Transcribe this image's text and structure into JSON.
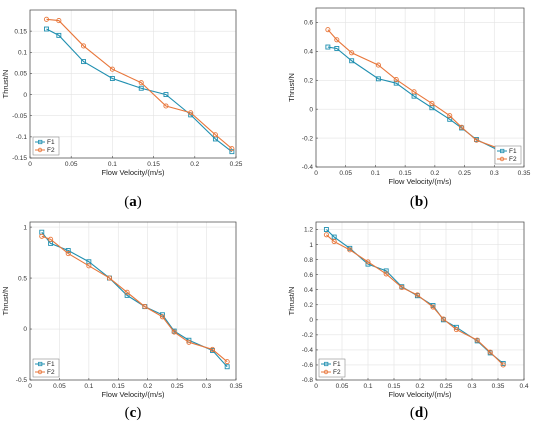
{
  "colors": {
    "F1": "#1f8fb0",
    "F2": "#e8763a",
    "grid": "#e3e3e3",
    "axis": "#444444"
  },
  "chart_data": [
    {
      "type": "line",
      "panel_label": "a",
      "xlabel": "Flow Velocity/(m/s)",
      "ylabel": "Thrust/N",
      "xlim": [
        0,
        0.25
      ],
      "ylim": [
        -0.15,
        0.2
      ],
      "xticks": [
        "0",
        "0.05",
        "0.1",
        "0.15",
        "0.2",
        "0.25"
      ],
      "yticks": [
        "-0.15",
        "-0.1",
        "-0.05",
        "0",
        "0.05",
        "0.1",
        "0.15"
      ],
      "grid": true,
      "legend_position": "bottom-left",
      "series": [
        {
          "name": "F1",
          "x": [
            0.02,
            0.035,
            0.065,
            0.1,
            0.135,
            0.165,
            0.195,
            0.225,
            0.245
          ],
          "y": [
            0.155,
            0.14,
            0.078,
            0.038,
            0.015,
            0.0,
            -0.048,
            -0.105,
            -0.135
          ]
        },
        {
          "name": "F2",
          "x": [
            0.02,
            0.035,
            0.065,
            0.1,
            0.135,
            0.165,
            0.195,
            0.225,
            0.245
          ],
          "y": [
            0.178,
            0.175,
            0.115,
            0.06,
            0.028,
            -0.027,
            -0.043,
            -0.095,
            -0.128
          ]
        }
      ]
    },
    {
      "type": "line",
      "panel_label": "b",
      "xlabel": "Flow Velocity/(m/s)",
      "ylabel": "Thrust/N",
      "xlim": [
        0,
        0.35
      ],
      "ylim": [
        -0.4,
        0.7
      ],
      "xticks": [
        "0",
        "0.05",
        "0.1",
        "0.15",
        "0.2",
        "0.25",
        "0.3",
        "0.35"
      ],
      "yticks": [
        "-0.4",
        "-0.2",
        "0",
        "0.2",
        "0.4",
        "0.6"
      ],
      "grid": true,
      "legend_position": "bottom-right",
      "series": [
        {
          "name": "F1",
          "x": [
            0.02,
            0.035,
            0.06,
            0.105,
            0.135,
            0.165,
            0.195,
            0.225,
            0.245,
            0.27,
            0.31
          ],
          "y": [
            0.43,
            0.42,
            0.335,
            0.21,
            0.18,
            0.09,
            0.01,
            -0.07,
            -0.13,
            -0.21,
            -0.29
          ]
        },
        {
          "name": "F2",
          "x": [
            0.02,
            0.035,
            0.06,
            0.105,
            0.135,
            0.165,
            0.195,
            0.225,
            0.245,
            0.27,
            0.31
          ],
          "y": [
            0.55,
            0.48,
            0.39,
            0.305,
            0.205,
            0.12,
            0.04,
            -0.045,
            -0.125,
            -0.215,
            -0.275
          ]
        }
      ]
    },
    {
      "type": "line",
      "panel_label": "c",
      "xlabel": "Flow Velocity/(m/s)",
      "ylabel": "Thrust/N",
      "xlim": [
        0,
        0.35
      ],
      "ylim": [
        -0.5,
        1.05
      ],
      "xticks": [
        "0",
        "0.05",
        "0.1",
        "0.15",
        "0.2",
        "0.25",
        "0.3",
        "0.35"
      ],
      "yticks": [
        "-0.5",
        "0",
        "0.5",
        "1"
      ],
      "grid": true,
      "legend_position": "bottom-left",
      "series": [
        {
          "name": "F1",
          "x": [
            0.02,
            0.035,
            0.065,
            0.1,
            0.135,
            0.165,
            0.195,
            0.225,
            0.245,
            0.27,
            0.31,
            0.335
          ],
          "y": [
            0.95,
            0.84,
            0.77,
            0.66,
            0.5,
            0.33,
            0.22,
            0.14,
            -0.02,
            -0.11,
            -0.21,
            -0.37
          ]
        },
        {
          "name": "F2",
          "x": [
            0.02,
            0.035,
            0.065,
            0.1,
            0.135,
            0.165,
            0.195,
            0.225,
            0.245,
            0.27,
            0.31,
            0.335
          ],
          "y": [
            0.91,
            0.88,
            0.74,
            0.62,
            0.5,
            0.36,
            0.22,
            0.12,
            -0.03,
            -0.13,
            -0.2,
            -0.32
          ]
        }
      ]
    },
    {
      "type": "line",
      "panel_label": "d",
      "xlabel": "Flow Velocity/(m/s)",
      "ylabel": "Thrust/N",
      "xlim": [
        0,
        0.4
      ],
      "ylim": [
        -0.8,
        1.3
      ],
      "xticks": [
        "0",
        "0.05",
        "0.1",
        "0.15",
        "0.2",
        "0.25",
        "0.3",
        "0.35",
        "0.4"
      ],
      "yticks": [
        "-0.8",
        "-0.6",
        "-0.4",
        "-0.2",
        "0",
        "0.2",
        "0.4",
        "0.6",
        "0.8",
        "1",
        "1.2"
      ],
      "grid": true,
      "legend_position": "bottom-left",
      "series": [
        {
          "name": "F1",
          "x": [
            0.02,
            0.035,
            0.065,
            0.1,
            0.135,
            0.165,
            0.195,
            0.225,
            0.245,
            0.27,
            0.31,
            0.335,
            0.36
          ],
          "y": [
            1.2,
            1.1,
            0.95,
            0.74,
            0.65,
            0.44,
            0.32,
            0.19,
            0.0,
            -0.1,
            -0.28,
            -0.44,
            -0.58
          ]
        },
        {
          "name": "F2",
          "x": [
            0.02,
            0.035,
            0.065,
            0.1,
            0.135,
            0.165,
            0.195,
            0.225,
            0.245,
            0.27,
            0.31,
            0.335,
            0.36
          ],
          "y": [
            1.13,
            1.04,
            0.93,
            0.77,
            0.61,
            0.43,
            0.33,
            0.17,
            0.01,
            -0.13,
            -0.27,
            -0.43,
            -0.6
          ]
        }
      ]
    }
  ]
}
